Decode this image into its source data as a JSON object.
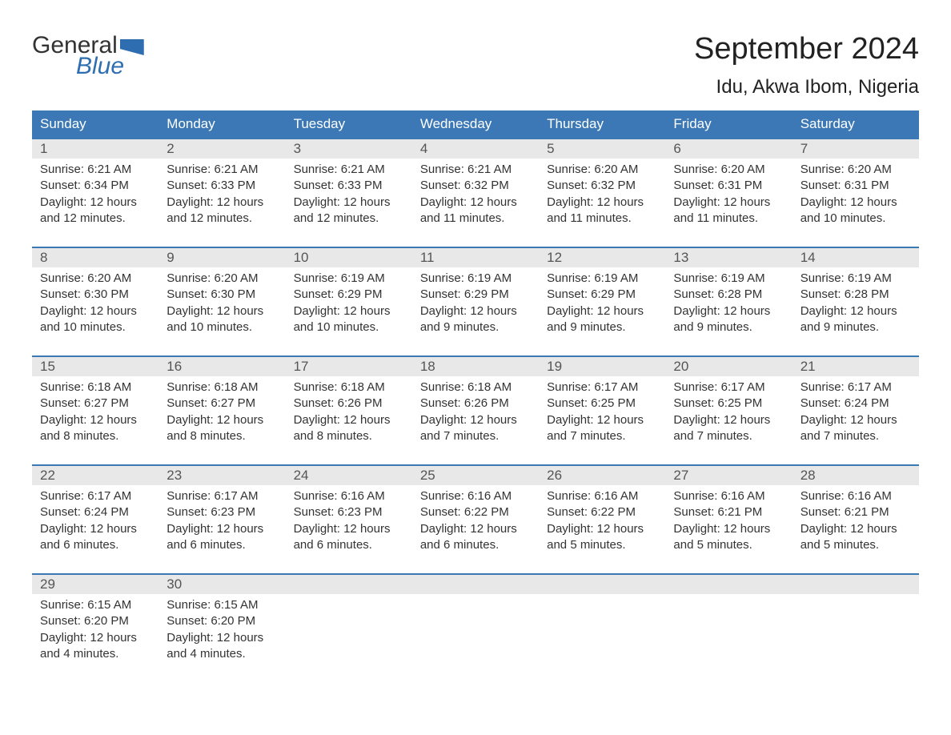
{
  "logo": {
    "general": "General",
    "blue": "Blue"
  },
  "title": "September 2024",
  "location": "Idu, Akwa Ibom, Nigeria",
  "weekdays": [
    "Sunday",
    "Monday",
    "Tuesday",
    "Wednesday",
    "Thursday",
    "Friday",
    "Saturday"
  ],
  "colors": {
    "header_bg": "#3b78b5",
    "header_text": "#ffffff",
    "day_header_bg": "#e8e8e8",
    "day_number_color": "#555555",
    "body_text": "#333333",
    "logo_blue": "#2e6eb0",
    "logo_gray": "#333333",
    "border": "#3b78b5",
    "background": "#ffffff"
  },
  "typography": {
    "title_fontsize": 38,
    "location_fontsize": 24,
    "weekday_fontsize": 17,
    "daynum_fontsize": 17,
    "cell_fontsize": 15,
    "logo_fontsize": 30
  },
  "weeks": [
    [
      {
        "day": "1",
        "sunrise": "Sunrise: 6:21 AM",
        "sunset": "Sunset: 6:34 PM",
        "daylight1": "Daylight: 12 hours",
        "daylight2": "and 12 minutes."
      },
      {
        "day": "2",
        "sunrise": "Sunrise: 6:21 AM",
        "sunset": "Sunset: 6:33 PM",
        "daylight1": "Daylight: 12 hours",
        "daylight2": "and 12 minutes."
      },
      {
        "day": "3",
        "sunrise": "Sunrise: 6:21 AM",
        "sunset": "Sunset: 6:33 PM",
        "daylight1": "Daylight: 12 hours",
        "daylight2": "and 12 minutes."
      },
      {
        "day": "4",
        "sunrise": "Sunrise: 6:21 AM",
        "sunset": "Sunset: 6:32 PM",
        "daylight1": "Daylight: 12 hours",
        "daylight2": "and 11 minutes."
      },
      {
        "day": "5",
        "sunrise": "Sunrise: 6:20 AM",
        "sunset": "Sunset: 6:32 PM",
        "daylight1": "Daylight: 12 hours",
        "daylight2": "and 11 minutes."
      },
      {
        "day": "6",
        "sunrise": "Sunrise: 6:20 AM",
        "sunset": "Sunset: 6:31 PM",
        "daylight1": "Daylight: 12 hours",
        "daylight2": "and 11 minutes."
      },
      {
        "day": "7",
        "sunrise": "Sunrise: 6:20 AM",
        "sunset": "Sunset: 6:31 PM",
        "daylight1": "Daylight: 12 hours",
        "daylight2": "and 10 minutes."
      }
    ],
    [
      {
        "day": "8",
        "sunrise": "Sunrise: 6:20 AM",
        "sunset": "Sunset: 6:30 PM",
        "daylight1": "Daylight: 12 hours",
        "daylight2": "and 10 minutes."
      },
      {
        "day": "9",
        "sunrise": "Sunrise: 6:20 AM",
        "sunset": "Sunset: 6:30 PM",
        "daylight1": "Daylight: 12 hours",
        "daylight2": "and 10 minutes."
      },
      {
        "day": "10",
        "sunrise": "Sunrise: 6:19 AM",
        "sunset": "Sunset: 6:29 PM",
        "daylight1": "Daylight: 12 hours",
        "daylight2": "and 10 minutes."
      },
      {
        "day": "11",
        "sunrise": "Sunrise: 6:19 AM",
        "sunset": "Sunset: 6:29 PM",
        "daylight1": "Daylight: 12 hours",
        "daylight2": "and 9 minutes."
      },
      {
        "day": "12",
        "sunrise": "Sunrise: 6:19 AM",
        "sunset": "Sunset: 6:29 PM",
        "daylight1": "Daylight: 12 hours",
        "daylight2": "and 9 minutes."
      },
      {
        "day": "13",
        "sunrise": "Sunrise: 6:19 AM",
        "sunset": "Sunset: 6:28 PM",
        "daylight1": "Daylight: 12 hours",
        "daylight2": "and 9 minutes."
      },
      {
        "day": "14",
        "sunrise": "Sunrise: 6:19 AM",
        "sunset": "Sunset: 6:28 PM",
        "daylight1": "Daylight: 12 hours",
        "daylight2": "and 9 minutes."
      }
    ],
    [
      {
        "day": "15",
        "sunrise": "Sunrise: 6:18 AM",
        "sunset": "Sunset: 6:27 PM",
        "daylight1": "Daylight: 12 hours",
        "daylight2": "and 8 minutes."
      },
      {
        "day": "16",
        "sunrise": "Sunrise: 6:18 AM",
        "sunset": "Sunset: 6:27 PM",
        "daylight1": "Daylight: 12 hours",
        "daylight2": "and 8 minutes."
      },
      {
        "day": "17",
        "sunrise": "Sunrise: 6:18 AM",
        "sunset": "Sunset: 6:26 PM",
        "daylight1": "Daylight: 12 hours",
        "daylight2": "and 8 minutes."
      },
      {
        "day": "18",
        "sunrise": "Sunrise: 6:18 AM",
        "sunset": "Sunset: 6:26 PM",
        "daylight1": "Daylight: 12 hours",
        "daylight2": "and 7 minutes."
      },
      {
        "day": "19",
        "sunrise": "Sunrise: 6:17 AM",
        "sunset": "Sunset: 6:25 PM",
        "daylight1": "Daylight: 12 hours",
        "daylight2": "and 7 minutes."
      },
      {
        "day": "20",
        "sunrise": "Sunrise: 6:17 AM",
        "sunset": "Sunset: 6:25 PM",
        "daylight1": "Daylight: 12 hours",
        "daylight2": "and 7 minutes."
      },
      {
        "day": "21",
        "sunrise": "Sunrise: 6:17 AM",
        "sunset": "Sunset: 6:24 PM",
        "daylight1": "Daylight: 12 hours",
        "daylight2": "and 7 minutes."
      }
    ],
    [
      {
        "day": "22",
        "sunrise": "Sunrise: 6:17 AM",
        "sunset": "Sunset: 6:24 PM",
        "daylight1": "Daylight: 12 hours",
        "daylight2": "and 6 minutes."
      },
      {
        "day": "23",
        "sunrise": "Sunrise: 6:17 AM",
        "sunset": "Sunset: 6:23 PM",
        "daylight1": "Daylight: 12 hours",
        "daylight2": "and 6 minutes."
      },
      {
        "day": "24",
        "sunrise": "Sunrise: 6:16 AM",
        "sunset": "Sunset: 6:23 PM",
        "daylight1": "Daylight: 12 hours",
        "daylight2": "and 6 minutes."
      },
      {
        "day": "25",
        "sunrise": "Sunrise: 6:16 AM",
        "sunset": "Sunset: 6:22 PM",
        "daylight1": "Daylight: 12 hours",
        "daylight2": "and 6 minutes."
      },
      {
        "day": "26",
        "sunrise": "Sunrise: 6:16 AM",
        "sunset": "Sunset: 6:22 PM",
        "daylight1": "Daylight: 12 hours",
        "daylight2": "and 5 minutes."
      },
      {
        "day": "27",
        "sunrise": "Sunrise: 6:16 AM",
        "sunset": "Sunset: 6:21 PM",
        "daylight1": "Daylight: 12 hours",
        "daylight2": "and 5 minutes."
      },
      {
        "day": "28",
        "sunrise": "Sunrise: 6:16 AM",
        "sunset": "Sunset: 6:21 PM",
        "daylight1": "Daylight: 12 hours",
        "daylight2": "and 5 minutes."
      }
    ],
    [
      {
        "day": "29",
        "sunrise": "Sunrise: 6:15 AM",
        "sunset": "Sunset: 6:20 PM",
        "daylight1": "Daylight: 12 hours",
        "daylight2": "and 4 minutes."
      },
      {
        "day": "30",
        "sunrise": "Sunrise: 6:15 AM",
        "sunset": "Sunset: 6:20 PM",
        "daylight1": "Daylight: 12 hours",
        "daylight2": "and 4 minutes."
      },
      {
        "day": "",
        "sunrise": "",
        "sunset": "",
        "daylight1": "",
        "daylight2": ""
      },
      {
        "day": "",
        "sunrise": "",
        "sunset": "",
        "daylight1": "",
        "daylight2": ""
      },
      {
        "day": "",
        "sunrise": "",
        "sunset": "",
        "daylight1": "",
        "daylight2": ""
      },
      {
        "day": "",
        "sunrise": "",
        "sunset": "",
        "daylight1": "",
        "daylight2": ""
      },
      {
        "day": "",
        "sunrise": "",
        "sunset": "",
        "daylight1": "",
        "daylight2": ""
      }
    ]
  ]
}
